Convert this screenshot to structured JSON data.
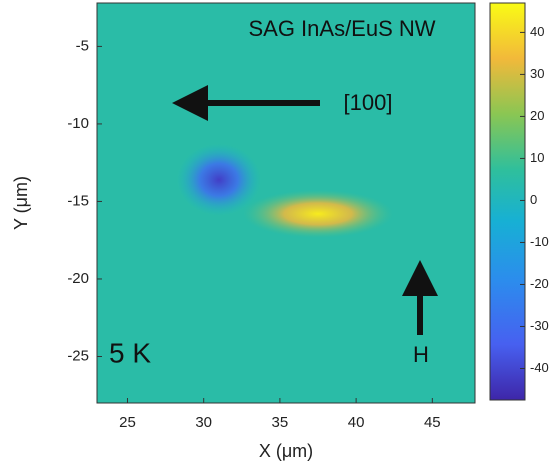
{
  "chart_data": {
    "type": "heatmap",
    "title": "SAG InAs/EuS NW",
    "x_label": "X (μm)",
    "y_label": "Y (μm)",
    "xlim": [
      23,
      47.8
    ],
    "xticks": [
      25,
      30,
      35,
      40,
      45
    ],
    "ylim": [
      -28,
      -2.2
    ],
    "yticks": [
      -5,
      -10,
      -15,
      -20,
      -25
    ],
    "clim": [
      -47.5,
      47
    ],
    "cticks": [
      40,
      30,
      20,
      10,
      0,
      -10,
      -20,
      -30,
      -40
    ],
    "background": 5,
    "features": [
      {
        "x": 31,
        "y": -13.6,
        "value": -42
      },
      {
        "x": 37.5,
        "y": -15.8,
        "value": 44
      }
    ],
    "annotations": {
      "direction": "[100]",
      "temperature": "5 K",
      "field": "H"
    }
  }
}
